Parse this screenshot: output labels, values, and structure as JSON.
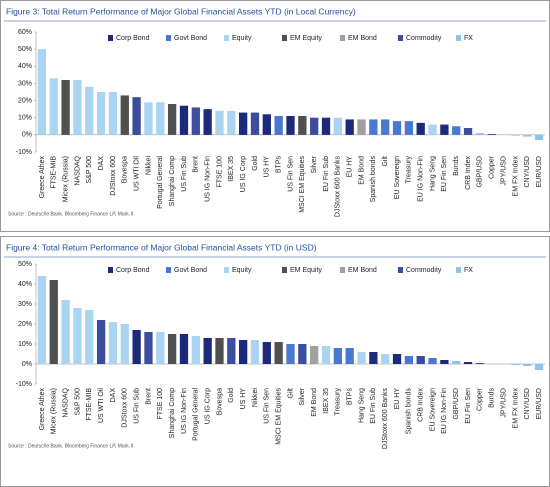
{
  "chart_data": [
    {
      "type": "bar",
      "title": "Figure 3: Total Return Performance of Major Global Financial Assets YTD (in Local Currency)",
      "source": "Source : Deutsche Bank, Bloomberg Finance LP, Mark-It",
      "legend": [
        {
          "name": "Corp Bond",
          "color": "#1c2a7a"
        },
        {
          "name": "Govt Bond",
          "color": "#4a78d0"
        },
        {
          "name": "Equity",
          "color": "#a9d5f2"
        },
        {
          "name": "EM Equity",
          "color": "#505050"
        },
        {
          "name": "EM Bond",
          "color": "#a0a0a0"
        },
        {
          "name": "Commodity",
          "color": "#3b4d9c"
        },
        {
          "name": "FX",
          "color": "#8fc3ea"
        }
      ],
      "categories": [
        "Greece Athex",
        "FTSE-MIB",
        "Micex (Russia)",
        "NASDAQ",
        "S&P 500",
        "DAX",
        "DJStoxx 600",
        "Bovespa",
        "US WTI Oil",
        "Nikkei",
        "Portugal General",
        "Shanghai Comp",
        "US Fin Sub",
        "Brent",
        "US IG Non-Fin",
        "FTSE 100",
        "IBEX 35",
        "US IG Corp",
        "Gold",
        "US HY",
        "BTPs",
        "US Fin Sen",
        "MSCI EM Equities",
        "Silver",
        "EU Fin Sub",
        "DJStoxx 600 Banks",
        "EU HY",
        "EM Bond",
        "Spanish bonds",
        "Gilt",
        "EU Sovereign",
        "Treasury",
        "EU IG Non-Fin",
        "Hang Seng",
        "EU Fin Sen",
        "Bunds",
        "CRB Index",
        "GBP/USD",
        "Copper",
        "JPY/USD",
        "EM FX Index",
        "CNY/USD",
        "EUR/USD"
      ],
      "values": [
        50,
        33,
        32,
        32,
        28,
        25,
        25,
        23,
        22,
        19,
        19,
        18,
        17,
        16,
        15,
        14,
        14,
        13,
        13,
        12,
        11,
        11,
        11,
        10,
        10,
        10,
        9,
        9,
        9,
        9,
        8,
        8,
        7,
        6,
        6,
        5,
        4,
        1,
        0.5,
        0,
        -0.5,
        -1,
        -3
      ],
      "colors": [
        "#a9d5f2",
        "#a9d5f2",
        "#505050",
        "#a9d5f2",
        "#a9d5f2",
        "#a9d5f2",
        "#a9d5f2",
        "#505050",
        "#3b4d9c",
        "#a9d5f2",
        "#a9d5f2",
        "#505050",
        "#1c2a7a",
        "#3b4d9c",
        "#1c2a7a",
        "#a9d5f2",
        "#a9d5f2",
        "#1c2a7a",
        "#3b4d9c",
        "#1c2a7a",
        "#4a78d0",
        "#1c2a7a",
        "#505050",
        "#3b4d9c",
        "#1c2a7a",
        "#a9d5f2",
        "#1c2a7a",
        "#a0a0a0",
        "#4a78d0",
        "#4a78d0",
        "#4a78d0",
        "#4a78d0",
        "#1c2a7a",
        "#a9d5f2",
        "#1c2a7a",
        "#4a78d0",
        "#3b4d9c",
        "#8fc3ea",
        "#3b4d9c",
        "#8fc3ea",
        "#8fc3ea",
        "#8fc3ea",
        "#8fc3ea"
      ],
      "ylim": [
        -10,
        60
      ],
      "yticks": [
        {
          "value": -10,
          "label": "-10%"
        },
        {
          "value": 0,
          "label": "0%"
        },
        {
          "value": 10,
          "label": "10%"
        },
        {
          "value": 20,
          "label": "20%"
        },
        {
          "value": 30,
          "label": "30%"
        },
        {
          "value": 40,
          "label": "40%"
        },
        {
          "value": 50,
          "label": "50%"
        },
        {
          "value": 60,
          "label": "60%"
        }
      ],
      "grid": false
    },
    {
      "type": "bar",
      "title": "Figure 4: Total Return Performance of Major Global Financial Assets YTD (in USD)",
      "source": "Source : Deutsche Bank, Bloomberg Finance LP, Mark-It",
      "legend": [
        {
          "name": "Corp Bond",
          "color": "#1c2a7a"
        },
        {
          "name": "Govt Bond",
          "color": "#4a78d0"
        },
        {
          "name": "Equity",
          "color": "#a9d5f2"
        },
        {
          "name": "EM Equity",
          "color": "#505050"
        },
        {
          "name": "EM Bond",
          "color": "#a0a0a0"
        },
        {
          "name": "Commodity",
          "color": "#3b4d9c"
        },
        {
          "name": "FX",
          "color": "#8fc3ea"
        }
      ],
      "categories": [
        "Greece Athex",
        "Micex (Russia)",
        "NASDAQ",
        "S&P 500",
        "FTSE-MIB",
        "US WTI Oil",
        "DAX",
        "DJStoxx 600",
        "US Fin Sub",
        "Brent",
        "FTSE 100",
        "Shanghai Comp",
        "US IG Non-Fin",
        "Portugal General",
        "US IG Corp",
        "Bovespa",
        "Gold",
        "US HY",
        "Nikkei",
        "US Fin Sen",
        "MSCI EM Equities",
        "Gilt",
        "Silver",
        "EM Bond",
        "IBEX 35",
        "Treasury",
        "BTPs",
        "Hang Seng",
        "EU Fin Sub",
        "DJStoxx 600 Banks",
        "EU HY",
        "Spanish bonds",
        "CRB Index",
        "EU Sovereign",
        "EU IG Non-Fin",
        "GBP/USD",
        "EU Fin Sen",
        "Copper",
        "Bunds",
        "JPY/USD",
        "EM FX Index",
        "CNY/USD",
        "EUR/USD"
      ],
      "values": [
        44,
        42,
        32,
        28,
        27,
        22,
        21,
        20,
        17,
        16,
        16,
        15,
        15,
        14,
        13,
        13,
        13,
        12,
        12,
        11,
        11,
        10,
        10,
        9,
        9,
        8,
        8,
        6,
        6,
        5,
        5,
        4,
        4,
        3,
        2,
        1.5,
        1,
        0.5,
        0,
        0,
        -0.5,
        -1,
        -3
      ],
      "colors": [
        "#a9d5f2",
        "#505050",
        "#a9d5f2",
        "#a9d5f2",
        "#a9d5f2",
        "#3b4d9c",
        "#a9d5f2",
        "#a9d5f2",
        "#1c2a7a",
        "#3b4d9c",
        "#a9d5f2",
        "#505050",
        "#1c2a7a",
        "#a9d5f2",
        "#1c2a7a",
        "#505050",
        "#3b4d9c",
        "#1c2a7a",
        "#a9d5f2",
        "#1c2a7a",
        "#505050",
        "#4a78d0",
        "#3b4d9c",
        "#a0a0a0",
        "#a9d5f2",
        "#4a78d0",
        "#4a78d0",
        "#a9d5f2",
        "#1c2a7a",
        "#a9d5f2",
        "#1c2a7a",
        "#4a78d0",
        "#3b4d9c",
        "#4a78d0",
        "#1c2a7a",
        "#8fc3ea",
        "#1c2a7a",
        "#3b4d9c",
        "#4a78d0",
        "#8fc3ea",
        "#8fc3ea",
        "#8fc3ea",
        "#8fc3ea"
      ],
      "ylim": [
        -10,
        50
      ],
      "yticks": [
        {
          "value": -10,
          "label": "-10%"
        },
        {
          "value": 0,
          "label": "0%"
        },
        {
          "value": 10,
          "label": "10%"
        },
        {
          "value": 20,
          "label": "20%"
        },
        {
          "value": 30,
          "label": "30%"
        },
        {
          "value": 40,
          "label": "40%"
        },
        {
          "value": 50,
          "label": "50%"
        }
      ],
      "grid": false
    }
  ]
}
